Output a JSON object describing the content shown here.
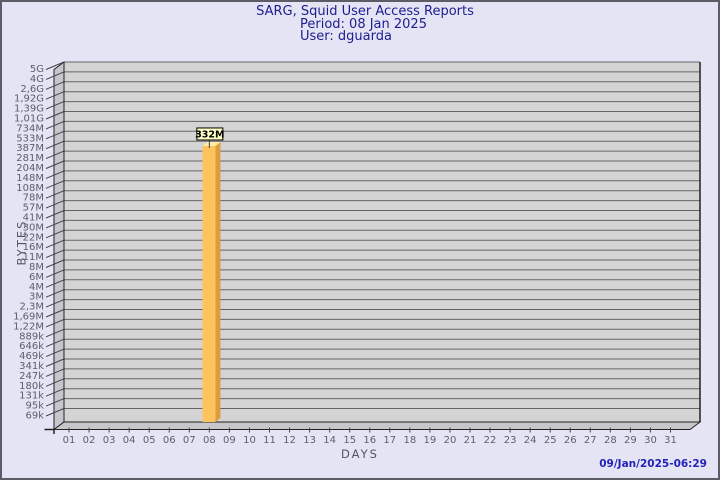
{
  "footer": {
    "generated": "09/Jan/2025-06:29"
  },
  "colors": {
    "background": "#e4e4f4",
    "frame_border": "#5c5c66",
    "title_text": "#1d1d8f",
    "axis_text": "#55555f",
    "tick_text": "#5f5f68",
    "timestamp_text": "#2323bb",
    "plot_bg": "#d4d4d4",
    "plot_wall": "#c7c7cb",
    "grid_line": "#646464",
    "edge_line": "#222222",
    "diag_tick": "#44444c",
    "bar_front": "#fcc35e",
    "bar_side": "#dc9e3c",
    "bar_top": "#fee9a5",
    "value_box_bg": "#ffffc6",
    "value_box_border": "#000000"
  },
  "chart_data": {
    "type": "bar",
    "style": "3d-bar",
    "title": "SARG, Squid User Access Reports",
    "period": "Period: 08 Jan 2025",
    "user": "User: dguarda",
    "xlabel": "DAYS",
    "ylabel": "BYTES",
    "grid": "horizontal",
    "y_scale": "logarithmic",
    "y_axis_top_value": "5G",
    "y_axis_bottom_value": "69k",
    "y_tick_labels": [
      "5G",
      "4G",
      "2,6G",
      "1,92G",
      "1,39G",
      "1,01G",
      "734M",
      "533M",
      "387M",
      "281M",
      "204M",
      "148M",
      "108M",
      "78M",
      "57M",
      "41M",
      "30M",
      "22M",
      "16M",
      "11M",
      "8M",
      "6M",
      "4M",
      "3M",
      "2,3M",
      "1,69M",
      "1,22M",
      "889k",
      "646k",
      "469k",
      "341k",
      "247k",
      "180k",
      "131k",
      "95k",
      "69k"
    ],
    "x_tick_labels": [
      "01",
      "02",
      "03",
      "04",
      "05",
      "06",
      "07",
      "08",
      "09",
      "10",
      "11",
      "12",
      "13",
      "14",
      "15",
      "16",
      "17",
      "18",
      "19",
      "20",
      "21",
      "22",
      "23",
      "24",
      "25",
      "26",
      "27",
      "28",
      "29",
      "30",
      "31"
    ],
    "series": [
      {
        "name": "dguarda",
        "points": [
          {
            "day": "08",
            "value": "332M",
            "label": "332M"
          }
        ]
      }
    ]
  }
}
